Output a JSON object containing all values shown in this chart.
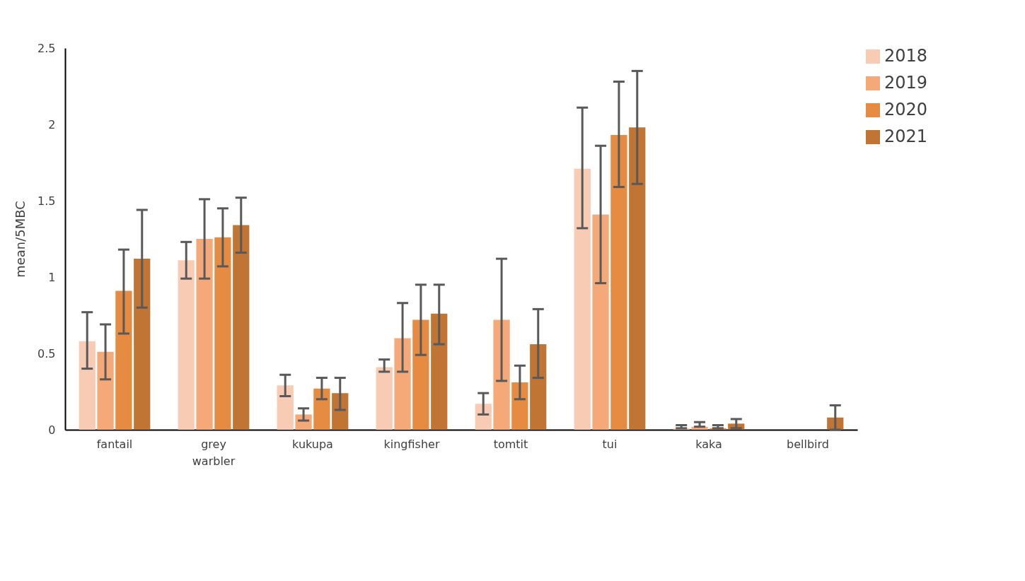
{
  "chart_data": {
    "type": "bar",
    "ylabel": "mean/5MBC",
    "categories": [
      "fantail",
      "grey warbler",
      "kukupa",
      "kingfisher",
      "tomtit",
      "tui",
      "kaka",
      "bellbird"
    ],
    "series": [
      {
        "name": "2018",
        "color": "#f8cbb4",
        "values": [
          0.58,
          1.11,
          0.29,
          0.41,
          0.17,
          1.71,
          0.01,
          null
        ],
        "errors": [
          [
            0.4,
            0.77
          ],
          [
            0.99,
            1.23
          ],
          [
            0.22,
            0.36
          ],
          [
            0.38,
            0.46
          ],
          [
            0.1,
            0.24
          ],
          [
            1.32,
            2.11
          ],
          [
            0.01,
            0.03
          ],
          null
        ]
      },
      {
        "name": "2019",
        "color": "#f5a978",
        "values": [
          0.51,
          1.25,
          0.1,
          0.6,
          0.72,
          1.41,
          0.02,
          null
        ],
        "errors": [
          [
            0.33,
            0.69
          ],
          [
            0.99,
            1.51
          ],
          [
            0.06,
            0.14
          ],
          [
            0.38,
            0.83
          ],
          [
            0.32,
            1.12
          ],
          [
            0.96,
            1.86
          ],
          [
            0.02,
            0.05
          ],
          null
        ]
      },
      {
        "name": "2020",
        "color": "#e58b42",
        "values": [
          0.91,
          1.26,
          0.27,
          0.72,
          0.31,
          1.93,
          0.01,
          null
        ],
        "errors": [
          [
            0.63,
            1.18
          ],
          [
            1.07,
            1.45
          ],
          [
            0.2,
            0.34
          ],
          [
            0.49,
            0.95
          ],
          [
            0.2,
            0.42
          ],
          [
            1.59,
            2.28
          ],
          [
            0.01,
            0.03
          ],
          null
        ]
      },
      {
        "name": "2021",
        "color": "#c17535",
        "values": [
          1.12,
          1.34,
          0.24,
          0.76,
          0.56,
          1.98,
          0.04,
          0.08
        ],
        "errors": [
          [
            0.8,
            1.44
          ],
          [
            1.16,
            1.52
          ],
          [
            0.13,
            0.34
          ],
          [
            0.56,
            0.95
          ],
          [
            0.34,
            0.79
          ],
          [
            1.61,
            2.35
          ],
          [
            0.01,
            0.07
          ],
          [
            0,
            0.16
          ]
        ]
      }
    ],
    "ylim": [
      0,
      2.5
    ],
    "yticks": [
      0,
      0.5,
      1,
      1.5,
      2,
      2.5
    ],
    "grid": false,
    "legend": "top right"
  }
}
